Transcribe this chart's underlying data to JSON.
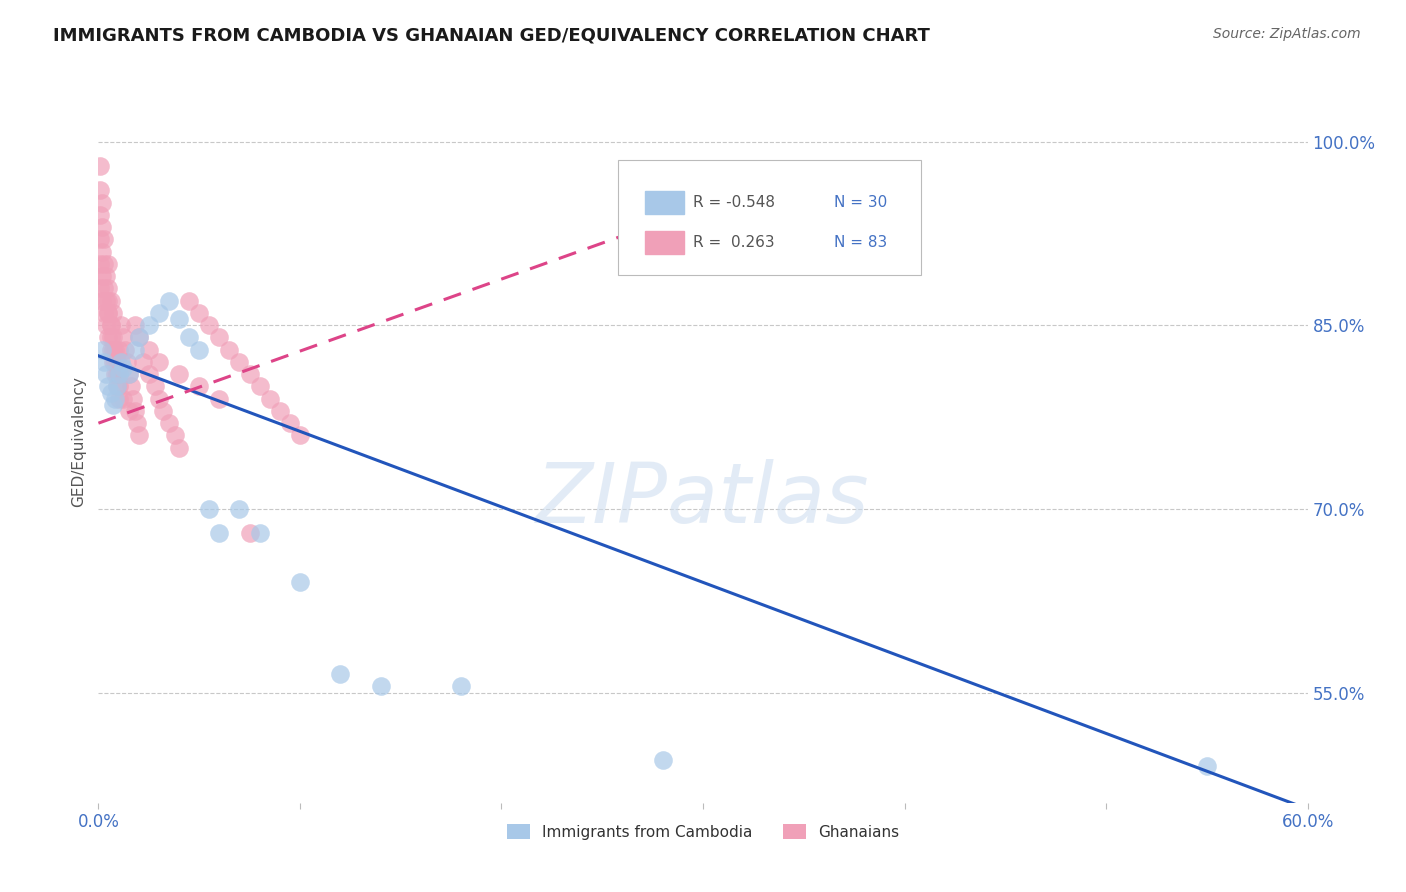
{
  "title": "IMMIGRANTS FROM CAMBODIA VS GHANAIAN GED/EQUIVALENCY CORRELATION CHART",
  "source": "Source: ZipAtlas.com",
  "ylabel": "GED/Equivalency",
  "ylabel_ticks": [
    "100.0%",
    "85.0%",
    "70.0%",
    "55.0%"
  ],
  "ylabel_tick_values": [
    1.0,
    0.85,
    0.7,
    0.55
  ],
  "legend1_r": "-0.548",
  "legend1_n": "30",
  "legend2_r": "0.263",
  "legend2_n": "83",
  "legend1_label": "Immigrants from Cambodia",
  "legend2_label": "Ghanaians",
  "blue_color": "#a8c8e8",
  "pink_color": "#f0a0b8",
  "blue_line_color": "#2255bb",
  "pink_line_color": "#dd4488",
  "pink_line_dashed": true,
  "watermark_text": "ZIPatlas",
  "watermark_color": "#d0dff0",
  "xlim": [
    0.0,
    0.6
  ],
  "ylim": [
    0.46,
    1.05
  ],
  "xticks": [
    0.0,
    0.1,
    0.2,
    0.3,
    0.4,
    0.5,
    0.6
  ],
  "xtick_labels_show": [
    "0.0%",
    "",
    "",
    "",
    "",
    "",
    "60.0%"
  ],
  "blue_x": [
    0.002,
    0.003,
    0.004,
    0.005,
    0.006,
    0.007,
    0.008,
    0.009,
    0.01,
    0.011,
    0.012,
    0.015,
    0.018,
    0.02,
    0.025,
    0.03,
    0.035,
    0.04,
    0.045,
    0.05,
    0.055,
    0.06,
    0.07,
    0.08,
    0.1,
    0.12,
    0.14,
    0.18,
    0.28,
    0.55
  ],
  "blue_y": [
    0.83,
    0.82,
    0.81,
    0.8,
    0.795,
    0.785,
    0.79,
    0.8,
    0.81,
    0.82,
    0.815,
    0.81,
    0.83,
    0.84,
    0.85,
    0.86,
    0.87,
    0.855,
    0.84,
    0.83,
    0.7,
    0.68,
    0.7,
    0.68,
    0.64,
    0.565,
    0.555,
    0.555,
    0.495,
    0.49
  ],
  "pink_x": [
    0.001,
    0.001,
    0.001,
    0.001,
    0.001,
    0.001,
    0.002,
    0.002,
    0.002,
    0.002,
    0.002,
    0.003,
    0.003,
    0.003,
    0.003,
    0.004,
    0.004,
    0.004,
    0.005,
    0.005,
    0.005,
    0.005,
    0.006,
    0.006,
    0.006,
    0.007,
    0.007,
    0.007,
    0.008,
    0.008,
    0.009,
    0.009,
    0.01,
    0.01,
    0.01,
    0.011,
    0.012,
    0.013,
    0.014,
    0.015,
    0.016,
    0.017,
    0.018,
    0.019,
    0.02,
    0.022,
    0.025,
    0.028,
    0.03,
    0.032,
    0.035,
    0.038,
    0.04,
    0.045,
    0.05,
    0.055,
    0.06,
    0.065,
    0.07,
    0.075,
    0.08,
    0.085,
    0.09,
    0.095,
    0.1,
    0.005,
    0.005,
    0.006,
    0.006,
    0.007,
    0.008,
    0.009,
    0.01,
    0.012,
    0.015,
    0.018,
    0.02,
    0.025,
    0.03,
    0.04,
    0.05,
    0.06,
    0.075
  ],
  "pink_y": [
    0.88,
    0.9,
    0.92,
    0.94,
    0.96,
    0.98,
    0.87,
    0.89,
    0.91,
    0.93,
    0.95,
    0.86,
    0.88,
    0.9,
    0.92,
    0.85,
    0.87,
    0.89,
    0.84,
    0.86,
    0.88,
    0.9,
    0.83,
    0.85,
    0.87,
    0.82,
    0.84,
    0.86,
    0.81,
    0.83,
    0.8,
    0.82,
    0.79,
    0.81,
    0.83,
    0.85,
    0.84,
    0.83,
    0.82,
    0.81,
    0.8,
    0.79,
    0.78,
    0.77,
    0.76,
    0.82,
    0.81,
    0.8,
    0.79,
    0.78,
    0.77,
    0.76,
    0.75,
    0.87,
    0.86,
    0.85,
    0.84,
    0.83,
    0.82,
    0.81,
    0.8,
    0.79,
    0.78,
    0.77,
    0.76,
    0.87,
    0.86,
    0.85,
    0.84,
    0.83,
    0.82,
    0.81,
    0.8,
    0.79,
    0.78,
    0.85,
    0.84,
    0.83,
    0.82,
    0.81,
    0.8,
    0.79,
    0.68
  ],
  "blue_trend_x0": 0.0,
  "blue_trend_x1": 0.6,
  "blue_trend_y0": 0.825,
  "blue_trend_y1": 0.455,
  "pink_trend_x0": 0.0,
  "pink_trend_x1": 0.34,
  "pink_trend_y0": 0.77,
  "pink_trend_y1": 0.97
}
